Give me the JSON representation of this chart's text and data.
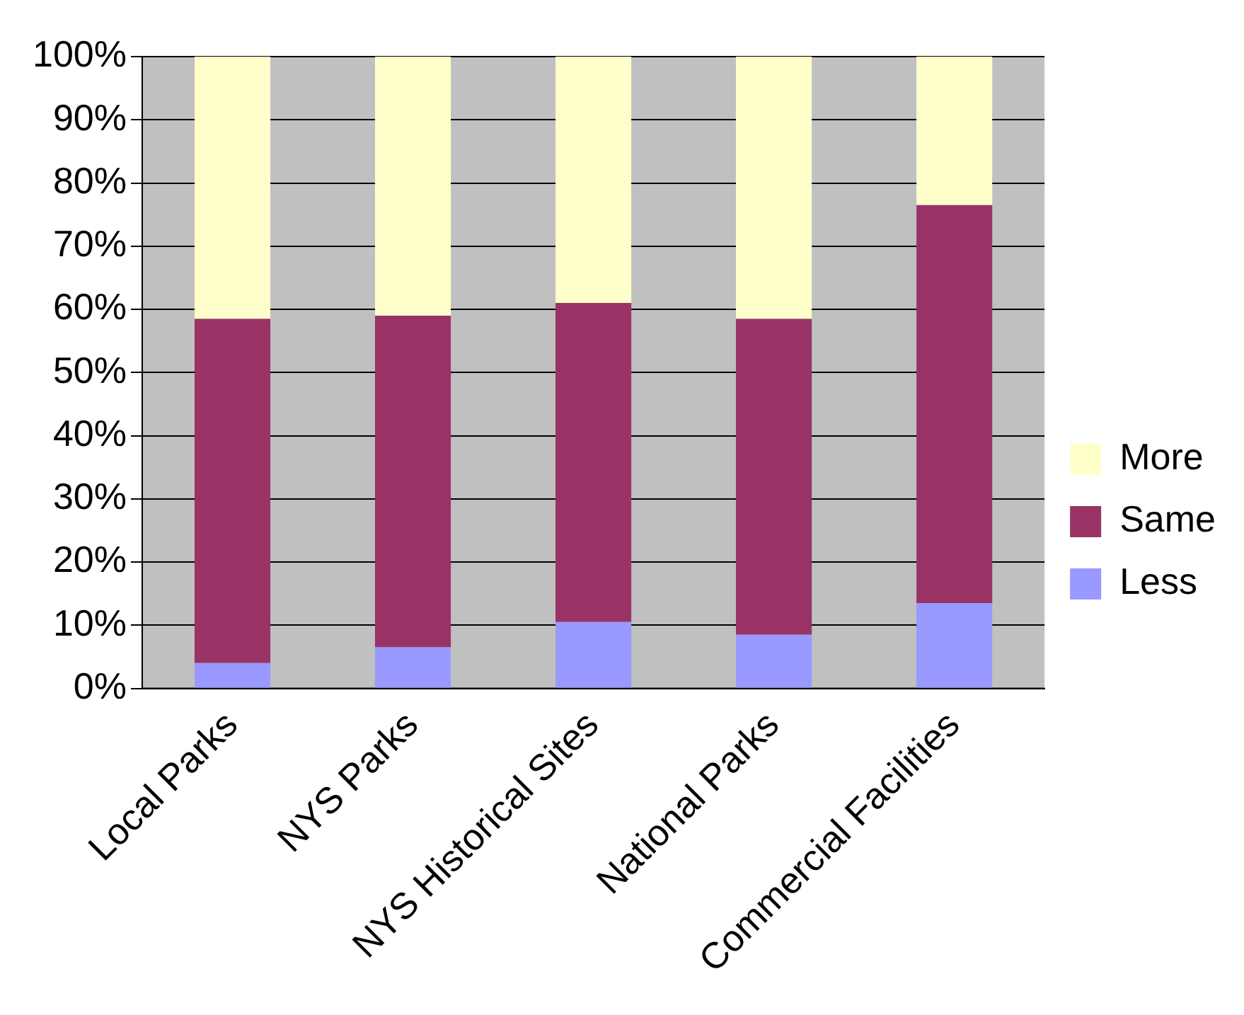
{
  "chart_data": {
    "type": "bar",
    "stacked": true,
    "categories": [
      "Local Parks",
      "NYS Parks",
      "NYS Historical Sites",
      "National Parks",
      "Commercial Facilities"
    ],
    "series": [
      {
        "name": "Less",
        "color": "#9999ff",
        "values": [
          4,
          6.5,
          10.5,
          8.5,
          13.5
        ]
      },
      {
        "name": "Same",
        "color": "#993366",
        "values": [
          54.5,
          52.5,
          50.5,
          50,
          63
        ]
      },
      {
        "name": "More",
        "color": "#ffffcc",
        "values": [
          41.5,
          41,
          39,
          41.5,
          23.5
        ]
      }
    ],
    "ylim": [
      0,
      100
    ],
    "yticks": [
      {
        "value": 0,
        "label": "0%"
      },
      {
        "value": 10,
        "label": "10%"
      },
      {
        "value": 20,
        "label": "20%"
      },
      {
        "value": 30,
        "label": "30%"
      },
      {
        "value": 40,
        "label": "40%"
      },
      {
        "value": 50,
        "label": "50%"
      },
      {
        "value": 60,
        "label": "60%"
      },
      {
        "value": 70,
        "label": "70%"
      },
      {
        "value": 80,
        "label": "80%"
      },
      {
        "value": 90,
        "label": "90%"
      },
      {
        "value": 100,
        "label": "100%"
      }
    ],
    "grid": "y",
    "legend": "right"
  }
}
